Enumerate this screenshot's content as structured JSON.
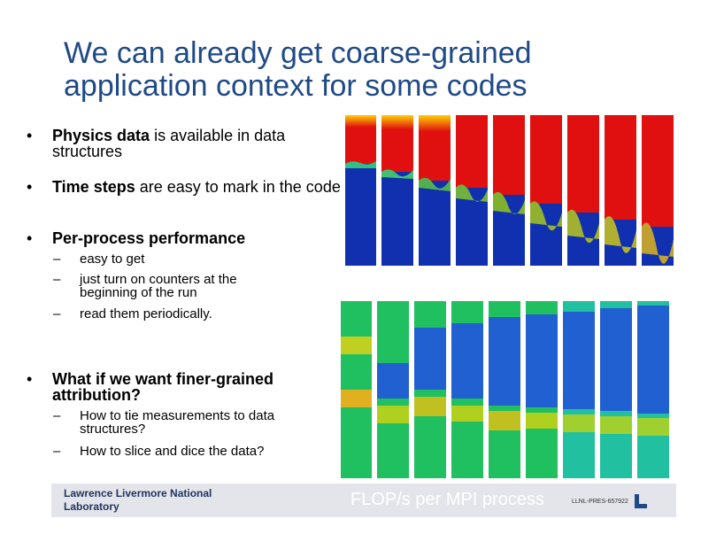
{
  "title": "We can already get coarse-grained application context for some codes",
  "bullets": [
    {
      "marker": "•",
      "em": "Physics data",
      "text": " is available in data structures"
    },
    {
      "marker": "•",
      "em": "Time steps",
      "text": " are easy to mark in the code"
    },
    {
      "marker": "•",
      "em": "Per-process performance",
      "text": ""
    }
  ],
  "sub_bullets_1": [
    {
      "marker": "–",
      "text": "easy to get"
    },
    {
      "marker": "–",
      "text": "just turn on counters at the beginning of the run"
    },
    {
      "marker": "–",
      "text": "read them periodically."
    }
  ],
  "bullet_4": {
    "marker": "•",
    "text": "What if we want finer-grained attribution?"
  },
  "sub_bullets_2": [
    {
      "marker": "–",
      "text": "How to tie measurements to data structures?"
    },
    {
      "marker": "–",
      "text": "How to slice and dice the data?"
    }
  ],
  "footer": {
    "lab": "Lawrence Livermore National Laboratory",
    "caption": "FLOP/s per MPI process",
    "docid": "LLNL-PRES-657922"
  },
  "colors": {
    "title": "#1f4a86",
    "physics_fluid_top": "#e01010",
    "physics_fluid_bottom": "#1030b0",
    "perf_green": "#20c060",
    "perf_blue": "#2060d0",
    "footer_bar": "#e4e5ea"
  }
}
